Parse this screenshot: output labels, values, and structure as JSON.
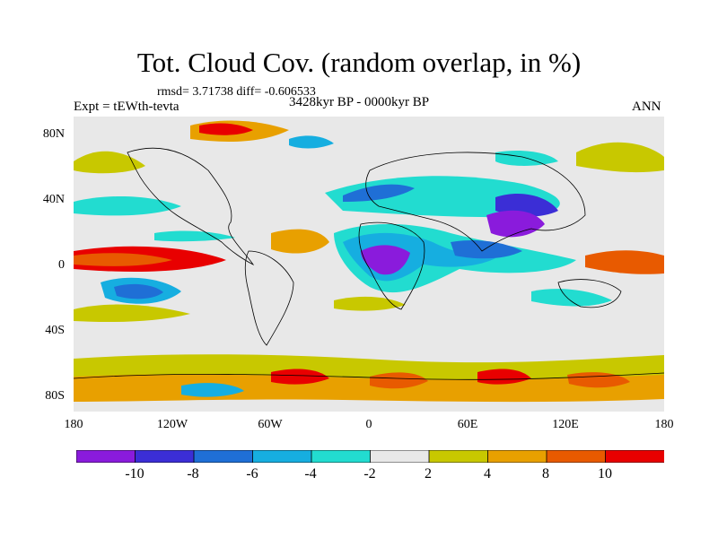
{
  "title": "Tot. Cloud Cov. (random overlap, in %)",
  "stats": "rmsd= 3.71738 diff= -0.606533",
  "experiment": "Expt = tEWth-tevta",
  "period": "3428kyr BP - 0000kyr BP",
  "season": "ANN",
  "lat_labels": [
    "80N",
    "40N",
    "0",
    "40S",
    "80S"
  ],
  "lon_labels": [
    "180",
    "120W",
    "60W",
    "0",
    "60E",
    "120E",
    "180"
  ],
  "colorbar": {
    "labels": [
      "-10",
      "-8",
      "-6",
      "-4",
      "-2",
      "2",
      "4",
      "8",
      "10"
    ],
    "colors": [
      "#8a1bdc",
      "#3b2ed6",
      "#1f6fd6",
      "#16aee0",
      "#22dcd0",
      "#e8e8e8",
      "#c8c800",
      "#e8a000",
      "#e85a00",
      "#e80000"
    ]
  }
}
